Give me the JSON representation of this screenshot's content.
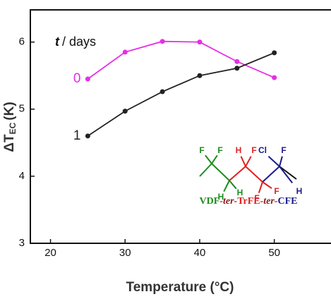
{
  "chart_data": {
    "type": "line",
    "annotation": {
      "italic": "t",
      "rest": "/ days"
    },
    "y_label": {
      "main": "ΔT",
      "sub": "EC",
      "unit": "(K)"
    },
    "x_label": "Temperature (°C)",
    "x": [
      25,
      30,
      35,
      40,
      45,
      50
    ],
    "series": [
      {
        "name": "0",
        "color": "#e62ee6",
        "values": [
          5.45,
          5.85,
          6.01,
          6.0,
          5.71,
          5.47
        ]
      },
      {
        "name": "1",
        "color": "#222222",
        "values": [
          4.6,
          4.97,
          5.26,
          5.5,
          5.61,
          5.84
        ]
      }
    ],
    "xlim": [
      17.3,
      57.6
    ],
    "ylim": [
      3,
      6.48
    ],
    "xticks": [
      20,
      30,
      40,
      50
    ],
    "yticks": [
      3,
      4,
      5,
      6
    ],
    "inset": {
      "atoms": [
        {
          "label": "F",
          "color": "#1a8c1a"
        },
        {
          "label": "F",
          "color": "#1a8c1a"
        },
        {
          "label": "H",
          "color": "#1a8c1a"
        },
        {
          "label": "H",
          "color": "#1a8c1a"
        },
        {
          "label": "H",
          "color": "#e02020"
        },
        {
          "label": "F",
          "color": "#e02020"
        },
        {
          "label": "F",
          "color": "#e02020"
        },
        {
          "label": "F",
          "color": "#e02020"
        },
        {
          "label": "Cl",
          "color": "#1a1a8c"
        },
        {
          "label": "F",
          "color": "#1a1a8c"
        },
        {
          "label": "H",
          "color": "#1a1a8c"
        }
      ],
      "formula": [
        {
          "text": "VDF",
          "color": "#1a8c1a",
          "italic": false
        },
        {
          "text": "-ter-",
          "color": "#8c1a1a",
          "italic": true
        },
        {
          "text": "TrFE",
          "color": "#e02020",
          "italic": false
        },
        {
          "text": "-ter-",
          "color": "#8c1a1a",
          "italic": true
        },
        {
          "text": "CFE",
          "color": "#1a1a8c",
          "italic": false
        }
      ]
    }
  }
}
